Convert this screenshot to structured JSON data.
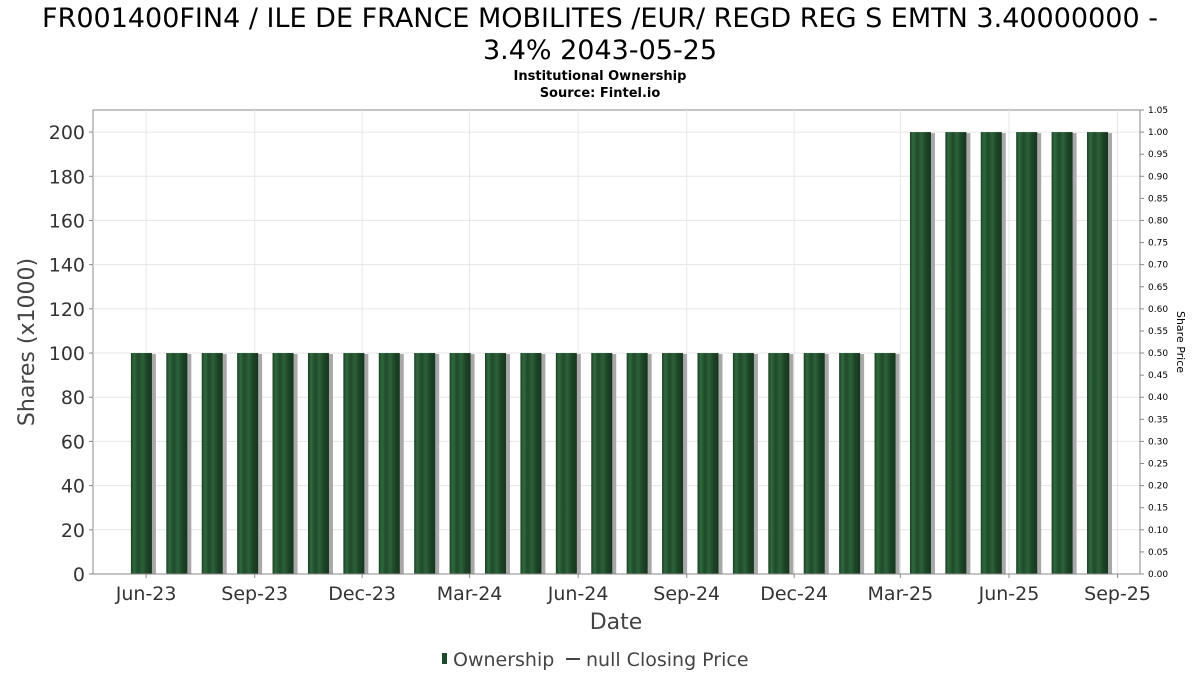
{
  "chart_data": {
    "type": "bar",
    "title_line1": "FR001400FIN4 / ILE DE FRANCE MOBILITES /EUR/ REGD REG S EMTN 3.40000000 -",
    "title_line2": "3.4% 2043-05-25",
    "subtitle": "Institutional Ownership",
    "source": "Source: Fintel.io",
    "xlabel": "Date",
    "ylabel": "Shares (x1000)",
    "y2label": "Share Price",
    "ylim": [
      0,
      210
    ],
    "y2lim": [
      0,
      1.05
    ],
    "y_ticks": [
      0,
      20,
      40,
      60,
      80,
      100,
      120,
      140,
      160,
      180,
      200
    ],
    "y_tick_labels": [
      "0",
      "20",
      "40",
      "60",
      "80",
      "100",
      "120",
      "140",
      "160",
      "180",
      "200"
    ],
    "y2_ticks": [
      0,
      0.05,
      0.1,
      0.15,
      0.2,
      0.25,
      0.3,
      0.35,
      0.4,
      0.45,
      0.5,
      0.55,
      0.6,
      0.65,
      0.7,
      0.75,
      0.8,
      0.85,
      0.9,
      0.95,
      1.0,
      1.05
    ],
    "y2_tick_labels": [
      "0.00",
      "0.05",
      "0.10",
      "0.15",
      "0.20",
      "0.25",
      "0.30",
      "0.35",
      "0.40",
      "0.45",
      "0.50",
      "0.55",
      "0.60",
      "0.65",
      "0.70",
      "0.75",
      "0.80",
      "0.85",
      "0.90",
      "0.95",
      "1.00",
      "1.05"
    ],
    "x_range": [
      "2023-04-17",
      "2025-09-20"
    ],
    "x_ticks": [
      {
        "date": "2023-06-01",
        "label": "Jun-23"
      },
      {
        "date": "2023-09-01",
        "label": "Sep-23"
      },
      {
        "date": "2023-12-01",
        "label": "Dec-23"
      },
      {
        "date": "2024-03-01",
        "label": "Mar-24"
      },
      {
        "date": "2024-06-01",
        "label": "Jun-24"
      },
      {
        "date": "2024-09-01",
        "label": "Sep-24"
      },
      {
        "date": "2024-12-01",
        "label": "Dec-24"
      },
      {
        "date": "2025-03-01",
        "label": "Mar-25"
      },
      {
        "date": "2025-06-01",
        "label": "Jun-25"
      },
      {
        "date": "2025-09-01",
        "label": "Sep-25"
      }
    ],
    "grid": true,
    "legend_position": "bottom-center",
    "series": [
      {
        "name": "Ownership",
        "color": "#1e4a2c",
        "x": [
          "2023-05-28",
          "2023-06-27",
          "2023-07-27",
          "2023-08-26",
          "2023-09-25",
          "2023-10-25",
          "2023-11-24",
          "2023-12-24",
          "2024-01-23",
          "2024-02-22",
          "2024-03-23",
          "2024-04-22",
          "2024-05-22",
          "2024-06-21",
          "2024-07-21",
          "2024-08-20",
          "2024-09-19",
          "2024-10-19",
          "2024-11-18",
          "2024-12-18",
          "2025-01-17",
          "2025-02-16",
          "2025-03-18",
          "2025-04-17",
          "2025-05-17",
          "2025-06-16",
          "2025-07-16",
          "2025-08-15"
        ],
        "values": [
          100,
          100,
          100,
          100,
          100,
          100,
          100,
          100,
          100,
          100,
          100,
          100,
          100,
          100,
          100,
          100,
          100,
          100,
          100,
          100,
          100,
          100,
          200,
          200,
          200,
          200,
          200,
          200
        ]
      },
      {
        "name": "null Closing Price",
        "color": "#444444",
        "values": []
      }
    ]
  }
}
